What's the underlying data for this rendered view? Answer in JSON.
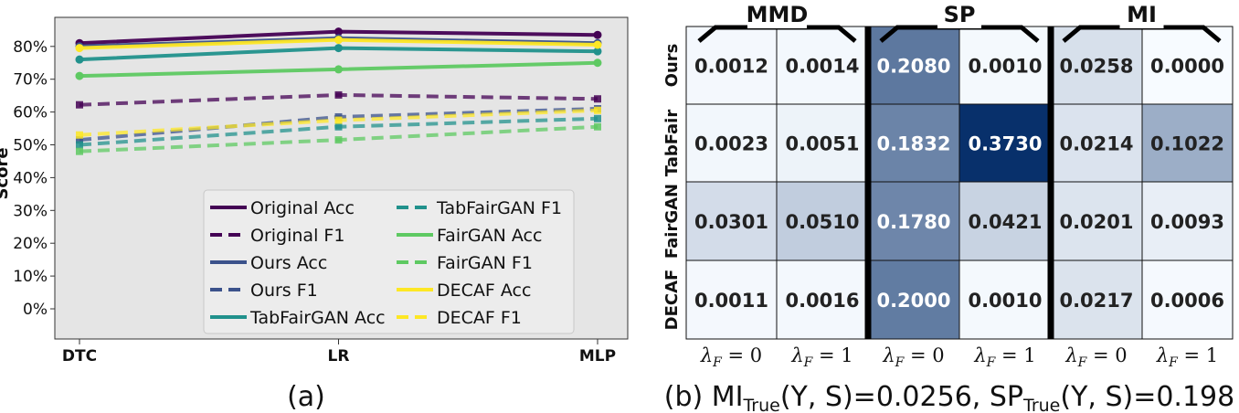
{
  "chart_data": [
    {
      "type": "line",
      "ylabel": "Score",
      "categories": [
        "DTC",
        "LR",
        "MLP"
      ],
      "yticks": [
        "0%",
        "10%",
        "20%",
        "30%",
        "40%",
        "50%",
        "60%",
        "70%",
        "80%"
      ],
      "ylim": [
        -10,
        87
      ],
      "caption": "(a)",
      "series": [
        {
          "name": "Original Acc",
          "values": [
            81,
            84.5,
            83.5
          ],
          "color": "#440154",
          "dash": false
        },
        {
          "name": "Original F1",
          "values": [
            62.2,
            65.2,
            64
          ],
          "color": "#440154",
          "dash": true
        },
        {
          "name": "Ours Acc",
          "values": [
            80,
            82.5,
            81
          ],
          "color": "#3b528b",
          "dash": false
        },
        {
          "name": "Ours F1",
          "values": [
            51.5,
            58.5,
            61
          ],
          "color": "#3b528b",
          "dash": true
        },
        {
          "name": "TabFairGAN Acc",
          "values": [
            76,
            79.5,
            78.5
          ],
          "color": "#21918c",
          "dash": false
        },
        {
          "name": "TabFairGAN F1",
          "values": [
            50,
            55.5,
            58
          ],
          "color": "#21918c",
          "dash": true
        },
        {
          "name": "FairGAN Acc",
          "values": [
            71,
            73,
            75
          ],
          "color": "#5ec962",
          "dash": false
        },
        {
          "name": "FairGAN F1",
          "values": [
            48,
            51.5,
            55.5
          ],
          "color": "#5ec962",
          "dash": true
        },
        {
          "name": "DECAF Acc",
          "values": [
            79.5,
            82,
            80.5
          ],
          "color": "#fde725",
          "dash": false
        },
        {
          "name": "DECAF F1",
          "values": [
            53,
            57.5,
            60.5
          ],
          "color": "#fde725",
          "dash": true
        }
      ]
    },
    {
      "type": "heatmap",
      "groups": [
        "MMD",
        "SP",
        "MI"
      ],
      "rows": [
        "Ours",
        "TabFair",
        "FairGAN",
        "DECAF"
      ],
      "columns": [
        "λF = 0",
        "λF = 1",
        "λF = 0",
        "λF = 1",
        "λF = 0",
        "λF = 1"
      ],
      "col_label_sym": "λ",
      "col_label_sub": "F",
      "col_label_vals": [
        "= 0",
        "= 1",
        "= 0",
        "= 1",
        "= 0",
        "= 1"
      ],
      "values": [
        [
          "0.0012",
          "0.0014",
          "0.2080",
          "0.0010",
          "0.0258",
          "0.0000"
        ],
        [
          "0.0023",
          "0.0051",
          "0.1832",
          "0.3730",
          "0.0214",
          "0.1022"
        ],
        [
          "0.0301",
          "0.0510",
          "0.1780",
          "0.0421",
          "0.0201",
          "0.0093"
        ],
        [
          "0.0011",
          "0.0016",
          "0.2000",
          "0.0010",
          "0.0217",
          "0.0006"
        ]
      ],
      "vmax": 0.373,
      "caption": {
        "prefix": "(b) MI",
        "sub1": "True",
        "mid": "(Y, S)=0.0256, SP",
        "sub2": "True",
        "end": "(Y, S)=0.198"
      }
    }
  ]
}
